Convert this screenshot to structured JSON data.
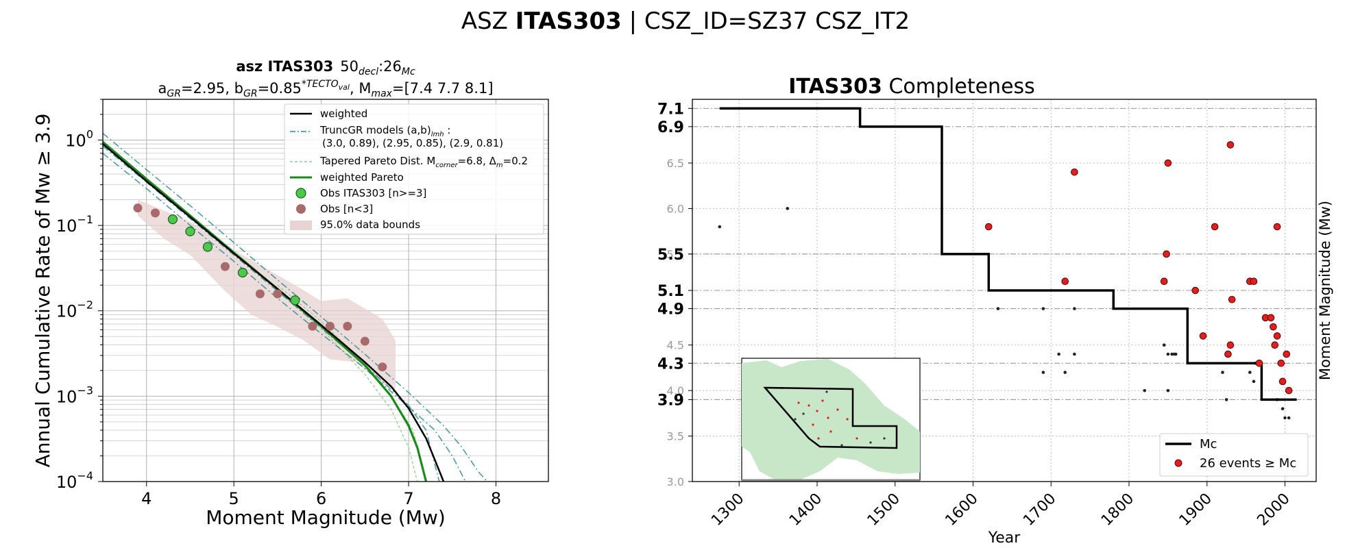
{
  "figure": {
    "title_prefix": "ASZ ",
    "title_bold": "ITAS303",
    "title_suffix": " | CSZ_ID=SZ37 CSZ_IT2"
  },
  "left": {
    "title_line1_bold": "asz ITAS303",
    "title_line1_rest": "50",
    "title_line1_sub1": "decl",
    "title_line1_mid": ":26",
    "title_line1_sub2": "Mc",
    "title_line2": {
      "a": "a",
      "a_sub": "GR",
      "a_val": "=2.95,  b",
      "b_sub": "GR",
      "b_val": "=0.85",
      "b_sup": "*TECTO",
      "b_supsub": "val",
      "m": ", M",
      "m_sub": "max",
      "m_val": "=[7.4 7.7 8.1]"
    },
    "legend": {
      "weighted": "weighted",
      "truncgr_1": "TruncGR models (a,b)",
      "truncgr_1_sub": "lmh",
      "truncgr_1_tail": " :",
      "truncgr_2": "(3.0, 0.89), (2.95, 0.85), (2.9, 0.81)",
      "tapered_a": "Tapered Pareto Dist. M",
      "tapered_sub": "corner",
      "tapered_b": "=6.8, Δ",
      "tapered_sub2": "m",
      "tapered_c": "=0.2",
      "wpareto": "weighted Pareto",
      "obs_main": "Obs ITAS303 [n>=3]",
      "obs_small": "Obs [n<3]",
      "bounds": "95.0% data bounds"
    },
    "colors": {
      "weighted": "#000000",
      "truncgr": "#2e8b8b",
      "tapered": "#8fd18f",
      "pareto": "#1a8a1a",
      "obs_main": "#4cc94c",
      "obs_small": "#a86a6a",
      "bounds": "#e8d2d2"
    }
  },
  "right": {
    "title_bold": "ITAS303",
    "title_rest": " Completeness",
    "legend_mc": "Mc",
    "legend_events": "26 events ≥  Mc",
    "colors": {
      "mc": "#000000",
      "events": "#e02020"
    }
  },
  "chart_data": [
    {
      "type": "scatter",
      "xlabel": "Moment Magnitude (Mw)",
      "ylabel": "Annual Cumulative Rate of Mw  ≥  3.9",
      "xlim": [
        3.5,
        8.6
      ],
      "ylim": [
        0.0001,
        3
      ],
      "yscale": "log",
      "xticks": [
        "4",
        "5",
        "6",
        "7",
        "8"
      ],
      "yticks": [
        {
          "base": "10",
          "exp": "0",
          "value": 1
        },
        {
          "base": "10",
          "exp": "−1",
          "value": 0.1
        },
        {
          "base": "10",
          "exp": "−2",
          "value": 0.01
        },
        {
          "base": "10",
          "exp": "−3",
          "value": 0.001
        },
        {
          "base": "10",
          "exp": "−4",
          "value": 0.0001
        }
      ],
      "grid": true,
      "legend_position": "top-right",
      "obs_main": {
        "x": [
          4.3,
          4.5,
          4.7,
          5.1,
          5.7
        ],
        "y": [
          0.118,
          0.085,
          0.056,
          0.028,
          0.0133
        ]
      },
      "obs_small": {
        "x": [
          3.9,
          4.1,
          4.9,
          5.3,
          5.5,
          5.9,
          6.1,
          6.3,
          6.5,
          6.7
        ],
        "y": [
          0.16,
          0.14,
          0.033,
          0.0158,
          0.0158,
          0.0066,
          0.0066,
          0.0066,
          0.0044,
          0.0022
        ]
      },
      "bounds_upper": {
        "x": [
          3.9,
          4.2,
          4.5,
          4.8,
          5.1,
          5.4,
          5.7,
          6.0,
          6.3,
          6.7,
          6.85
        ],
        "y": [
          0.2,
          0.15,
          0.11,
          0.07,
          0.045,
          0.03,
          0.02,
          0.013,
          0.014,
          0.008,
          0.0045
        ]
      },
      "bounds_lower": {
        "x": [
          6.85,
          6.7,
          6.4,
          6.1,
          5.8,
          5.5,
          5.2,
          4.9,
          4.5,
          4.2,
          3.9
        ],
        "y": [
          0.0012,
          0.0014,
          0.0025,
          0.0027,
          0.0045,
          0.0065,
          0.009,
          0.017,
          0.045,
          0.07,
          0.13
        ]
      },
      "weighted": {
        "x": [
          3.5,
          4.0,
          4.5,
          5.0,
          5.5,
          6.0,
          6.5,
          6.8,
          7.0,
          7.2,
          7.3,
          7.4
        ],
        "y": [
          0.9,
          0.33,
          0.125,
          0.047,
          0.018,
          0.0068,
          0.0025,
          0.0013,
          0.00072,
          0.00032,
          0.00018,
          0.0001
        ]
      },
      "truncgr": [
        {
          "x": [
            3.5,
            4.0,
            4.5,
            5.0,
            5.5,
            6.0,
            6.5,
            7.0,
            7.4,
            7.6,
            7.8,
            7.9
          ],
          "y": [
            1.2,
            0.45,
            0.17,
            0.063,
            0.023,
            0.0085,
            0.0031,
            0.0011,
            0.00045,
            0.00026,
            0.00013,
            0.0001
          ]
        },
        {
          "x": [
            3.5,
            4.0,
            4.5,
            5.0,
            5.5,
            6.0,
            6.5,
            7.0,
            7.2,
            7.35
          ],
          "y": [
            0.85,
            0.32,
            0.12,
            0.045,
            0.017,
            0.0063,
            0.0023,
            0.00078,
            0.0004,
            0.0001
          ]
        },
        {
          "x": [
            3.5,
            4.0,
            4.5,
            5.0,
            5.5,
            6.0,
            6.5,
            7.0,
            7.3,
            7.5,
            7.65
          ],
          "y": [
            0.7,
            0.27,
            0.1,
            0.038,
            0.014,
            0.0054,
            0.0021,
            0.00075,
            0.0004,
            0.0002,
            0.0001
          ]
        }
      ],
      "tapered": [
        {
          "x": [
            5.5,
            6.0,
            6.5,
            6.8,
            7.0,
            7.1
          ],
          "y": [
            0.017,
            0.0062,
            0.0018,
            0.0007,
            0.00025,
            0.0001
          ]
        },
        {
          "x": [
            5.5,
            6.0,
            6.5,
            6.8,
            7.05,
            7.2
          ],
          "y": [
            0.02,
            0.0075,
            0.0024,
            0.001,
            0.0004,
            0.0001
          ]
        }
      ],
      "pareto": {
        "x": [
          3.5,
          4.0,
          4.5,
          5.0,
          5.5,
          6.0,
          6.5,
          6.8,
          7.0,
          7.1,
          7.2
        ],
        "y": [
          0.95,
          0.35,
          0.13,
          0.048,
          0.018,
          0.0066,
          0.0023,
          0.001,
          0.00045,
          0.00025,
          0.0001
        ]
      }
    },
    {
      "type": "line",
      "xlabel": "Year",
      "ylabel": "Moment Magnitude (Mw)",
      "xlim": [
        1240,
        2040
      ],
      "ylim": [
        3.0,
        7.2
      ],
      "xticks": [
        "1300",
        "1400",
        "1500",
        "1600",
        "1700",
        "1800",
        "1900",
        "2000"
      ],
      "yticks_minor": [
        "3.0",
        "3.5",
        "4.0",
        "4.5",
        "5.5",
        "6.0",
        "6.5"
      ],
      "yticks_mc": [
        "7.1",
        "6.9",
        "5.5",
        "5.1",
        "4.9",
        "4.3",
        "3.9"
      ],
      "grid": true,
      "legend_position": "bottom-right",
      "mc_step": {
        "x": [
          1275,
          1455,
          1455,
          1560,
          1560,
          1620,
          1620,
          1780,
          1780,
          1875,
          1875,
          1970,
          1970,
          2015
        ],
        "y": [
          7.1,
          7.1,
          6.9,
          6.9,
          5.5,
          5.5,
          5.1,
          5.1,
          4.9,
          4.9,
          4.3,
          4.3,
          3.9,
          3.9
        ]
      },
      "events": {
        "x": [
          1620,
          1730,
          1718,
          1850,
          1848,
          1845,
          1885,
          1910,
          1930,
          1932,
          1930,
          1895,
          1927,
          1955,
          1960,
          1975,
          1982,
          1985,
          1990,
          1967,
          1987,
          1995,
          1997,
          2002,
          2005,
          1990
        ],
        "y": [
          5.8,
          6.4,
          5.2,
          6.5,
          5.5,
          5.2,
          5.1,
          5.8,
          6.7,
          5.0,
          4.5,
          4.6,
          4.4,
          5.2,
          5.2,
          4.8,
          4.8,
          4.7,
          4.6,
          4.3,
          4.5,
          4.3,
          4.1,
          4.4,
          4.0,
          5.8
        ]
      },
      "small_events": {
        "x": [
          1275,
          1362,
          1632,
          1690,
          1730,
          1718,
          1710,
          1690,
          1730,
          1820,
          1845,
          1850,
          1855,
          1858,
          1860,
          1850,
          1925,
          1920,
          1955,
          1960,
          1990,
          1997,
          2000,
          2005,
          1962
        ],
        "y": [
          5.8,
          6.0,
          4.9,
          4.9,
          4.9,
          4.2,
          4.4,
          4.2,
          4.4,
          4.0,
          4.5,
          4.4,
          4.4,
          4.4,
          4.4,
          4.0,
          3.9,
          4.2,
          4.2,
          4.1,
          3.9,
          3.8,
          3.7,
          3.7,
          4.3
        ]
      }
    }
  ]
}
